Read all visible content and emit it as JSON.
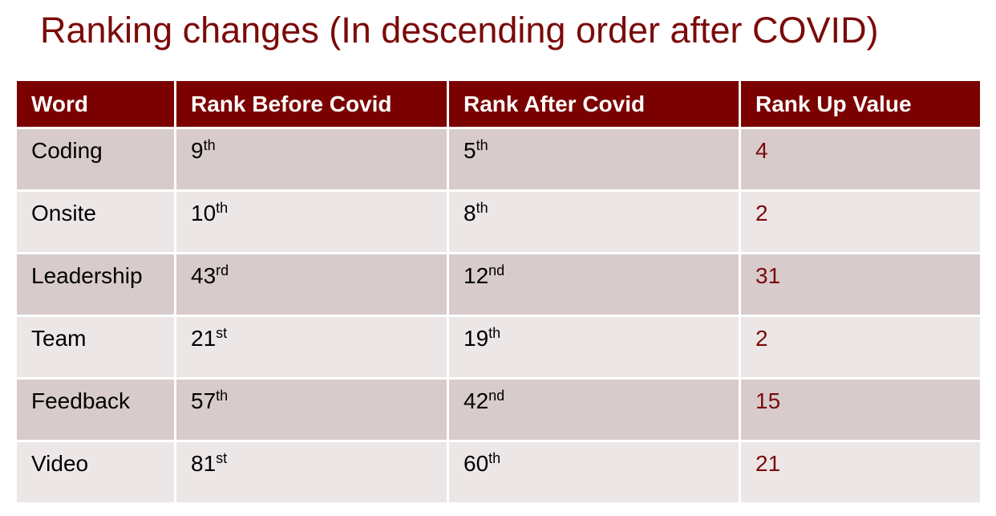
{
  "title": "Ranking changes (In descending order after COVID)",
  "table": {
    "headers": [
      "Word",
      "Rank Before Covid",
      "Rank After Covid",
      "Rank Up Value"
    ],
    "rows": [
      {
        "word": "Coding",
        "before_num": "9",
        "before_sfx": "th",
        "after_num": "5",
        "after_sfx": "th",
        "up": "4"
      },
      {
        "word": "Onsite",
        "before_num": "10",
        "before_sfx": "th",
        "after_num": "8",
        "after_sfx": "th",
        "up": "2"
      },
      {
        "word": "Leadership",
        "before_num": "43",
        "before_sfx": "rd",
        "after_num": "12",
        "after_sfx": "nd",
        "up": "31"
      },
      {
        "word": "Team",
        "before_num": "21",
        "before_sfx": "st",
        "after_num": "19",
        "after_sfx": "th",
        "up": "2"
      },
      {
        "word": "Feedback",
        "before_num": "57",
        "before_sfx": "th",
        "after_num": "42",
        "after_sfx": "nd",
        "up": "15"
      },
      {
        "word": "Video",
        "before_num": "81",
        "before_sfx": "st",
        "after_num": "60",
        "after_sfx": "th",
        "up": "21"
      }
    ]
  },
  "colors": {
    "header_bg": "#7b0000",
    "accent_text": "#7b0a0a",
    "row_dark": "#d8cbcb",
    "row_light": "#ede6e6"
  }
}
